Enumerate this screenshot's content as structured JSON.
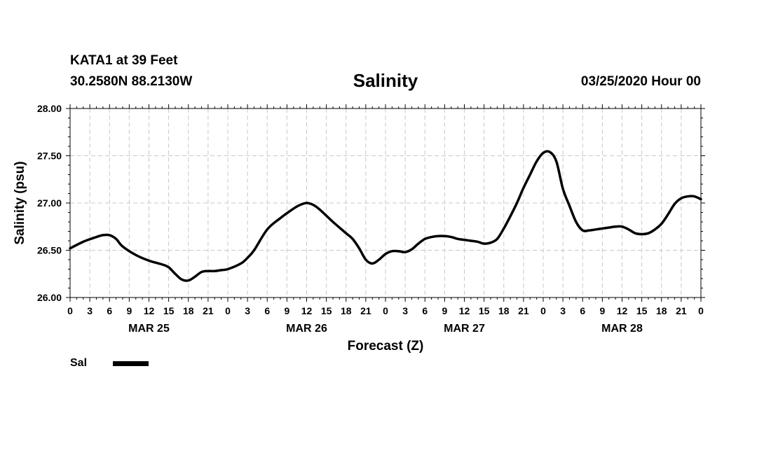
{
  "header": {
    "station": "KATA1 at 39 Feet",
    "coords": "30.2580N 88.2130W",
    "title": "Salinity",
    "run": "03/25/2020 Hour 00"
  },
  "legend": {
    "label": "Sal"
  },
  "chart_data": {
    "type": "line",
    "title": "Salinity",
    "xlabel": "Forecast (Z)",
    "ylabel": "Salinity (psu)",
    "x_unit": "hours since 03/25/2020 00Z",
    "xlim": [
      0,
      96
    ],
    "ylim": [
      26.0,
      28.0
    ],
    "yticks": [
      "26.00",
      "26.50",
      "27.00",
      "27.50",
      "28.00"
    ],
    "xtick_step_hours": 3,
    "xtick_labels": [
      "0",
      "3",
      "6",
      "9",
      "12",
      "15",
      "18",
      "21",
      "0",
      "3",
      "6",
      "9",
      "12",
      "15",
      "18",
      "21",
      "0",
      "3",
      "6",
      "9",
      "12",
      "15",
      "18",
      "21",
      "0",
      "3",
      "6",
      "9",
      "12",
      "15",
      "18",
      "21",
      "0"
    ],
    "day_labels": [
      {
        "label": "MAR 25",
        "hour": 12
      },
      {
        "label": "MAR 26",
        "hour": 36
      },
      {
        "label": "MAR 27",
        "hour": 60
      },
      {
        "label": "MAR 28",
        "hour": 84
      }
    ],
    "grid": true,
    "legend_position": "bottom-left",
    "series": [
      {
        "name": "Sal",
        "color": "#000000",
        "x": [
          0,
          2,
          4,
          5,
          6,
          7,
          8,
          10,
          12,
          14,
          15,
          16,
          17,
          18,
          19,
          20,
          21,
          22,
          23,
          24,
          26,
          27,
          28,
          30,
          32,
          34,
          35,
          36,
          37,
          38,
          40,
          42,
          43,
          44,
          45,
          46,
          47,
          48,
          49,
          50,
          51,
          52,
          53,
          54,
          55,
          56,
          57,
          58,
          59,
          60,
          61,
          62,
          63,
          64,
          65,
          66,
          67,
          68,
          69,
          70,
          71,
          72,
          73,
          74,
          75,
          76,
          77,
          78,
          79,
          80,
          81,
          82,
          83,
          84,
          85,
          86,
          87,
          88,
          89,
          90,
          91,
          92,
          93,
          94,
          95,
          96
        ],
        "y": [
          26.52,
          26.59,
          26.64,
          26.66,
          26.66,
          26.62,
          26.54,
          26.45,
          26.39,
          26.35,
          26.32,
          26.25,
          26.19,
          26.18,
          26.22,
          26.27,
          26.28,
          26.28,
          26.29,
          26.3,
          26.36,
          26.42,
          26.5,
          26.72,
          26.84,
          26.94,
          26.98,
          27.0,
          26.98,
          26.93,
          26.8,
          26.68,
          26.62,
          26.52,
          26.4,
          26.36,
          26.4,
          26.46,
          26.49,
          26.49,
          26.48,
          26.51,
          26.57,
          26.62,
          26.64,
          26.65,
          26.65,
          26.64,
          26.62,
          26.61,
          26.6,
          26.59,
          26.57,
          26.58,
          26.62,
          26.73,
          26.86,
          27.0,
          27.16,
          27.3,
          27.44,
          27.53,
          27.54,
          27.44,
          27.15,
          26.97,
          26.8,
          26.71,
          26.71,
          26.72,
          26.73,
          26.74,
          26.75,
          26.75,
          26.72,
          26.68,
          26.67,
          26.68,
          26.72,
          26.78,
          26.88,
          26.99,
          27.05,
          27.07,
          27.07,
          27.04
        ]
      }
    ]
  }
}
